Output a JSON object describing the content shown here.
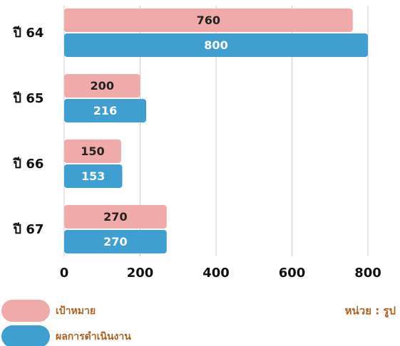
{
  "chart_data": {
    "type": "hbar",
    "categories": [
      "ปี 64",
      "ปี 65",
      "ปี 66",
      "ปี 67"
    ],
    "series": [
      {
        "name": "เป้าหมาย",
        "color": "#f0aaa9",
        "values": [
          760,
          200,
          150,
          270
        ]
      },
      {
        "name": "ผลการดำเนินงาน",
        "color": "#3e9fd0",
        "values": [
          800,
          216,
          153,
          270
        ]
      }
    ],
    "xlim": [
      0,
      800
    ],
    "xticks": [
      0,
      200,
      400,
      600,
      800
    ],
    "grid": true,
    "annotation": "หน่วย : รูป"
  }
}
